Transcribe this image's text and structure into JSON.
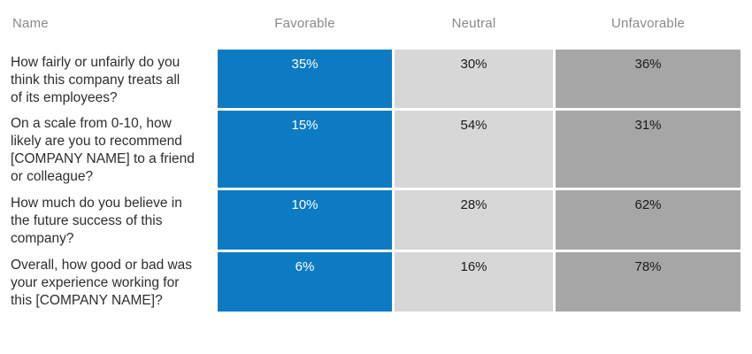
{
  "table": {
    "columns": [
      "Name",
      "Favorable",
      "Neutral",
      "Unfavorable"
    ],
    "rows": [
      {
        "question": "How fairly or unfairly do you\nthink this company treats all\nof its employees?",
        "favorable": "35%",
        "neutral": "30%",
        "unfavorable": "36%"
      },
      {
        "question": "On a scale from 0-10, how\nlikely are you to recommend\n[COMPANY NAME] to a friend\nor colleague?",
        "favorable": "15%",
        "neutral": "54%",
        "unfavorable": "31%"
      },
      {
        "question": "How much do you believe in\nthe future success of this\ncompany?",
        "favorable": "10%",
        "neutral": "28%",
        "unfavorable": "62%"
      },
      {
        "question": "Overall, how good or bad was\nyour experience working for\nthis [COMPANY NAME]?",
        "favorable": "6%",
        "neutral": "16%",
        "unfavorable": "78%"
      }
    ]
  },
  "colors": {
    "favorable_fill": "#0d7bc4",
    "neutral_fill": "#d7d7d7",
    "unfavorable_fill": "#a6a6a6",
    "header_text": "#8a8a8a",
    "question_text": "#2e2e2e",
    "value_on_favorable": "#ffffff",
    "value_on_gray": "#1b1b1b"
  },
  "chart_data": {
    "type": "table",
    "title": "",
    "unit": "%",
    "categories": [
      "How fairly or unfairly do you think this company treats all of its employees?",
      "On a scale from 0-10, how likely are you to recommend [COMPANY NAME] to a friend or colleague?",
      "How much do you believe in the future success of this company?",
      "Overall, how good or bad was your experience working for this [COMPANY NAME]?"
    ],
    "series": [
      {
        "name": "Favorable",
        "values": [
          35,
          15,
          10,
          6
        ]
      },
      {
        "name": "Neutral",
        "values": [
          30,
          54,
          28,
          16
        ]
      },
      {
        "name": "Unfavorable",
        "values": [
          36,
          31,
          62,
          78
        ]
      }
    ],
    "legend_position": "top",
    "grid": false
  }
}
